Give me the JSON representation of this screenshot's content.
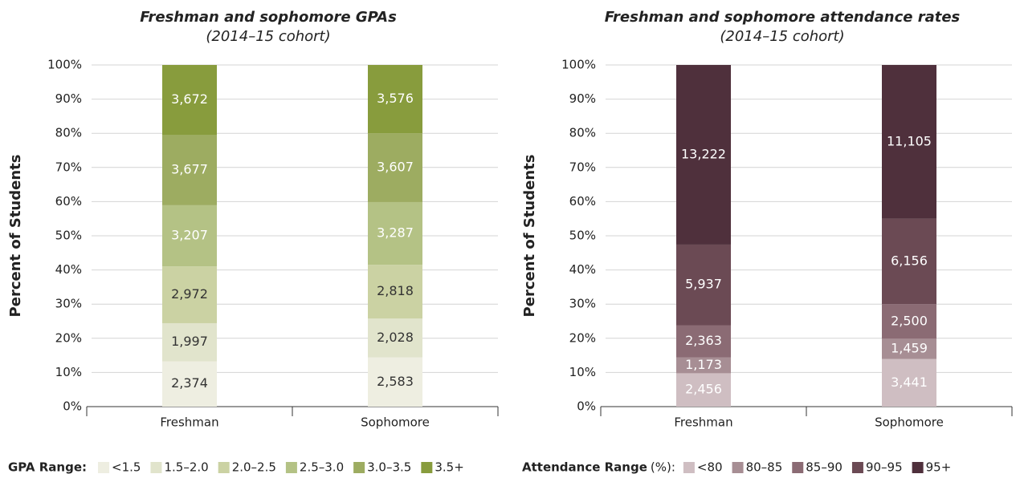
{
  "chart_data": [
    {
      "type": "bar",
      "stacking": "percent",
      "title": "Freshman and sophomore GPAs",
      "subtitle": "(2014–15 cohort)",
      "y_label": "Percent of Students",
      "categories": [
        "Freshman",
        "Sophomore"
      ],
      "ylim": [
        0,
        100
      ],
      "yticks": [
        {
          "value": 0,
          "label": "0%"
        },
        {
          "value": 10,
          "label": "10%"
        },
        {
          "value": 20,
          "label": "20%"
        },
        {
          "value": 30,
          "label": "30%"
        },
        {
          "value": 40,
          "label": "40%"
        },
        {
          "value": 50,
          "label": "50%"
        },
        {
          "value": 60,
          "label": "60%"
        },
        {
          "value": 70,
          "label": "70%"
        },
        {
          "value": 80,
          "label": "80%"
        },
        {
          "value": 90,
          "label": "90%"
        },
        {
          "value": 100,
          "label": "100%"
        }
      ],
      "grid": true,
      "legend_title": "GPA Range:",
      "series": [
        {
          "name": "<1.5",
          "color": "#eeeee1",
          "label_color": "#333333",
          "values": [
            2374,
            2583
          ],
          "value_labels": [
            "2,374",
            "2,583"
          ]
        },
        {
          "name": "1.5–2.0",
          "color": "#e1e4cc",
          "label_color": "#333333",
          "values": [
            1997,
            2028
          ],
          "value_labels": [
            "1,997",
            "2,028"
          ]
        },
        {
          "name": "2.0–2.5",
          "color": "#cbd2a3",
          "label_color": "#333333",
          "values": [
            2972,
            2818
          ],
          "value_labels": [
            "2,972",
            "2,818"
          ]
        },
        {
          "name": "2.5–3.0",
          "color": "#b4c285",
          "label_color": "#ffffff",
          "values": [
            3207,
            3287
          ],
          "value_labels": [
            "3,207",
            "3,287"
          ]
        },
        {
          "name": "3.0–3.5",
          "color": "#9dac61",
          "label_color": "#ffffff",
          "values": [
            3677,
            3607
          ],
          "value_labels": [
            "3,677",
            "3,607"
          ]
        },
        {
          "name": "3.5+",
          "color": "#889c3d",
          "label_color": "#ffffff",
          "values": [
            3672,
            3576
          ],
          "value_labels": [
            "3,672",
            "3,576"
          ]
        }
      ]
    },
    {
      "type": "bar",
      "stacking": "percent",
      "title": "Freshman and sophomore attendance rates",
      "subtitle": "(2014–15 cohort)",
      "y_label": "Percent of Students",
      "categories": [
        "Freshman",
        "Sophomore"
      ],
      "ylim": [
        0,
        100
      ],
      "yticks": [
        {
          "value": 0,
          "label": "0%"
        },
        {
          "value": 10,
          "label": "10%"
        },
        {
          "value": 20,
          "label": "20%"
        },
        {
          "value": 30,
          "label": "30%"
        },
        {
          "value": 40,
          "label": "40%"
        },
        {
          "value": 50,
          "label": "50%"
        },
        {
          "value": 60,
          "label": "60%"
        },
        {
          "value": 70,
          "label": "70%"
        },
        {
          "value": 80,
          "label": "80%"
        },
        {
          "value": 90,
          "label": "90%"
        },
        {
          "value": 100,
          "label": "100%"
        }
      ],
      "grid": true,
      "legend_title": "Attendance Range",
      "legend_title_suffix": "(%):",
      "series": [
        {
          "name": "<80",
          "color": "#cfbec2",
          "label_color": "#ffffff",
          "values": [
            2456,
            3441
          ],
          "value_labels": [
            "2,456",
            "3,441"
          ]
        },
        {
          "name": "80–85",
          "color": "#a78e94",
          "label_color": "#ffffff",
          "values": [
            1173,
            1459
          ],
          "value_labels": [
            "1,173",
            "1,459"
          ]
        },
        {
          "name": "85–90",
          "color": "#8b6b74",
          "label_color": "#ffffff",
          "values": [
            2363,
            2500
          ],
          "value_labels": [
            "2,363",
            "2,500"
          ]
        },
        {
          "name": "90–95",
          "color": "#6b4a54",
          "label_color": "#ffffff",
          "values": [
            5937,
            6156
          ],
          "value_labels": [
            "5,937",
            "6,156"
          ]
        },
        {
          "name": "95+",
          "color": "#4f303c",
          "label_color": "#ffffff",
          "values": [
            13222,
            11105
          ],
          "value_labels": [
            "13,222",
            "11,105"
          ]
        }
      ]
    }
  ]
}
